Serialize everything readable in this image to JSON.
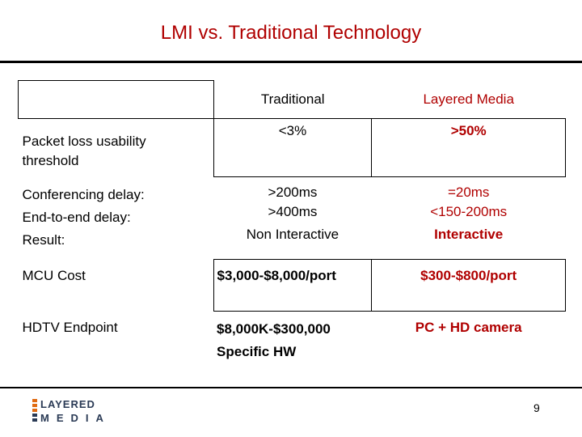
{
  "title": "LMI vs. Traditional Technology",
  "header": {
    "corner": "",
    "col1": "Traditional",
    "col2": "Layered Media"
  },
  "rows": [
    {
      "label": [
        "Packet loss usability",
        "threshold"
      ],
      "col1": [
        "<3%"
      ],
      "col2": [
        ">50%"
      ]
    },
    {
      "label": [
        "Conferencing delay:",
        "End-to-end delay:",
        "Result:"
      ],
      "col1": [
        ">200ms",
        ">400ms",
        "Non Interactive"
      ],
      "col2": [
        "=20ms",
        "<150-200ms",
        "Interactive"
      ]
    },
    {
      "label": [
        "MCU Cost"
      ],
      "col1": [
        "$3,000-$8,000/port"
      ],
      "col2": [
        "$300-$800/port"
      ]
    },
    {
      "label": [
        "HDTV Endpoint"
      ],
      "col1": [
        "$8,000K-$300,000",
        "Specific HW"
      ],
      "col2": [
        "PC + HD camera"
      ]
    }
  ],
  "logo": {
    "line1": "LAYERED",
    "line2": "MEDIA"
  },
  "page_number": "9",
  "colors": {
    "accent_red": "#b00000",
    "logo_orange": "#e06a10",
    "logo_dark": "#2a3a55"
  }
}
